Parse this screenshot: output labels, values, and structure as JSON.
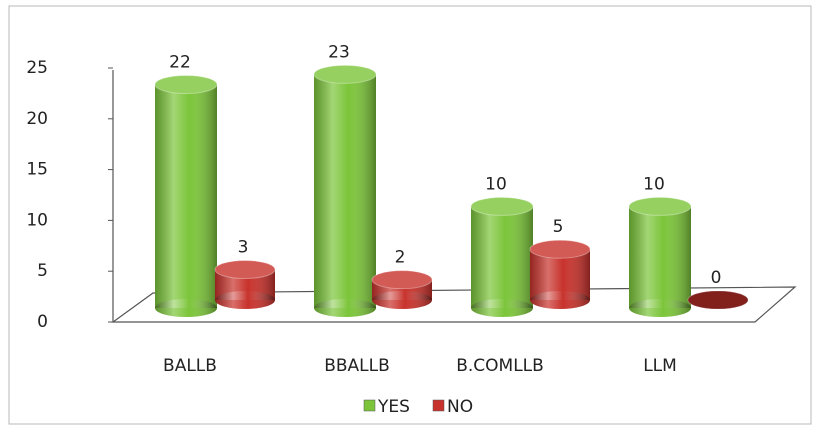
{
  "chart_data": {
    "type": "bar3d",
    "categories": [
      "BALLB",
      "BBALLB",
      "B.COMLLB",
      "LLM"
    ],
    "series": [
      {
        "name": "YES",
        "color": "#7cc53a",
        "values": [
          22,
          23,
          10,
          10
        ]
      },
      {
        "name": "NO",
        "color": "#c8322c",
        "values": [
          3,
          2,
          5,
          0
        ]
      }
    ],
    "ylim": [
      0,
      25
    ],
    "yticks": [
      0,
      5,
      10,
      15,
      20,
      25
    ],
    "legend": "bottom"
  }
}
